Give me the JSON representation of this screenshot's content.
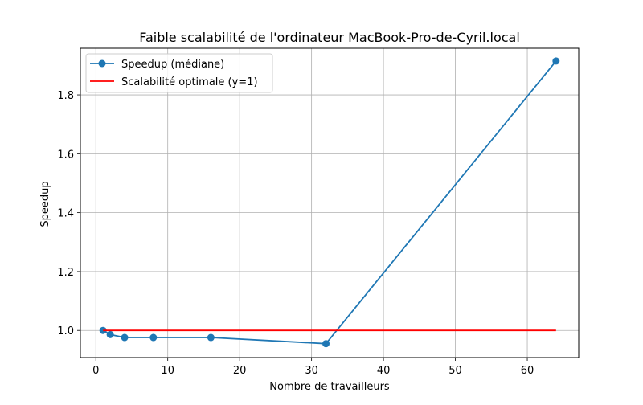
{
  "chart_data": {
    "type": "line",
    "title": "Faible scalabilité de l'ordinateur MacBook-Pro-de-Cyril.local",
    "xlabel": "Nombre de travailleurs",
    "ylabel": "Speedup",
    "xlim": [
      -2.15,
      67.15
    ],
    "ylim": [
      0.9078,
      1.9584
    ],
    "xticks": [
      0,
      10,
      20,
      30,
      40,
      50,
      60
    ],
    "yticks": [
      1.0,
      1.2,
      1.4,
      1.6,
      1.8
    ],
    "xtick_labels": [
      "0",
      "10",
      "20",
      "30",
      "40",
      "50",
      "60"
    ],
    "ytick_labels": [
      "1.0",
      "1.2",
      "1.4",
      "1.6",
      "1.8"
    ],
    "grid": true,
    "legend_position": "top-left",
    "series": [
      {
        "name": "Speedup (médiane)",
        "color": "#1f77b4",
        "marker": "circle",
        "x": [
          1,
          2,
          4,
          8,
          16,
          32,
          64
        ],
        "y": [
          1.0,
          0.986,
          0.976,
          0.976,
          0.976,
          0.955,
          1.915
        ]
      },
      {
        "name": "Scalabilité optimale (y=1)",
        "color": "#ff0000",
        "marker": "none",
        "x": [
          1,
          64
        ],
        "y": [
          1.0,
          1.0
        ]
      }
    ]
  }
}
